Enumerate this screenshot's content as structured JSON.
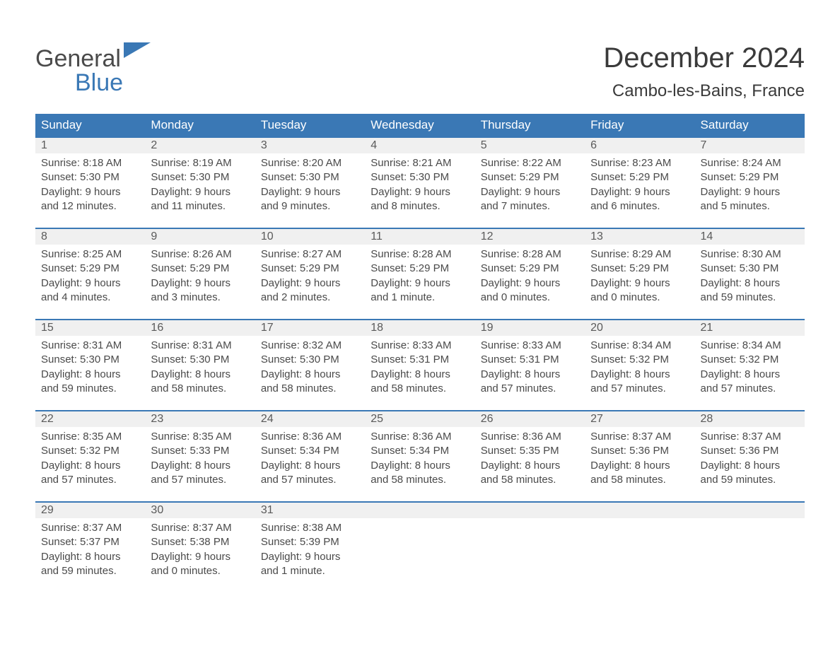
{
  "logo": {
    "part1": "General",
    "part2": "Blue"
  },
  "title": "December 2024",
  "location": "Cambo-les-Bains, France",
  "colors": {
    "header_bg": "#3a78b5",
    "header_text": "#ffffff",
    "daynum_bg": "#f0f0f0",
    "row_border": "#3a78b5",
    "body_text": "#4a4a4a",
    "title_text": "#3a3a3a",
    "logo_accent": "#3a78b5"
  },
  "day_headers": [
    "Sunday",
    "Monday",
    "Tuesday",
    "Wednesday",
    "Thursday",
    "Friday",
    "Saturday"
  ],
  "weeks": [
    [
      {
        "n": "1",
        "sunrise": "Sunrise: 8:18 AM",
        "sunset": "Sunset: 5:30 PM",
        "d1": "Daylight: 9 hours",
        "d2": "and 12 minutes."
      },
      {
        "n": "2",
        "sunrise": "Sunrise: 8:19 AM",
        "sunset": "Sunset: 5:30 PM",
        "d1": "Daylight: 9 hours",
        "d2": "and 11 minutes."
      },
      {
        "n": "3",
        "sunrise": "Sunrise: 8:20 AM",
        "sunset": "Sunset: 5:30 PM",
        "d1": "Daylight: 9 hours",
        "d2": "and 9 minutes."
      },
      {
        "n": "4",
        "sunrise": "Sunrise: 8:21 AM",
        "sunset": "Sunset: 5:30 PM",
        "d1": "Daylight: 9 hours",
        "d2": "and 8 minutes."
      },
      {
        "n": "5",
        "sunrise": "Sunrise: 8:22 AM",
        "sunset": "Sunset: 5:29 PM",
        "d1": "Daylight: 9 hours",
        "d2": "and 7 minutes."
      },
      {
        "n": "6",
        "sunrise": "Sunrise: 8:23 AM",
        "sunset": "Sunset: 5:29 PM",
        "d1": "Daylight: 9 hours",
        "d2": "and 6 minutes."
      },
      {
        "n": "7",
        "sunrise": "Sunrise: 8:24 AM",
        "sunset": "Sunset: 5:29 PM",
        "d1": "Daylight: 9 hours",
        "d2": "and 5 minutes."
      }
    ],
    [
      {
        "n": "8",
        "sunrise": "Sunrise: 8:25 AM",
        "sunset": "Sunset: 5:29 PM",
        "d1": "Daylight: 9 hours",
        "d2": "and 4 minutes."
      },
      {
        "n": "9",
        "sunrise": "Sunrise: 8:26 AM",
        "sunset": "Sunset: 5:29 PM",
        "d1": "Daylight: 9 hours",
        "d2": "and 3 minutes."
      },
      {
        "n": "10",
        "sunrise": "Sunrise: 8:27 AM",
        "sunset": "Sunset: 5:29 PM",
        "d1": "Daylight: 9 hours",
        "d2": "and 2 minutes."
      },
      {
        "n": "11",
        "sunrise": "Sunrise: 8:28 AM",
        "sunset": "Sunset: 5:29 PM",
        "d1": "Daylight: 9 hours",
        "d2": "and 1 minute."
      },
      {
        "n": "12",
        "sunrise": "Sunrise: 8:28 AM",
        "sunset": "Sunset: 5:29 PM",
        "d1": "Daylight: 9 hours",
        "d2": "and 0 minutes."
      },
      {
        "n": "13",
        "sunrise": "Sunrise: 8:29 AM",
        "sunset": "Sunset: 5:29 PM",
        "d1": "Daylight: 9 hours",
        "d2": "and 0 minutes."
      },
      {
        "n": "14",
        "sunrise": "Sunrise: 8:30 AM",
        "sunset": "Sunset: 5:30 PM",
        "d1": "Daylight: 8 hours",
        "d2": "and 59 minutes."
      }
    ],
    [
      {
        "n": "15",
        "sunrise": "Sunrise: 8:31 AM",
        "sunset": "Sunset: 5:30 PM",
        "d1": "Daylight: 8 hours",
        "d2": "and 59 minutes."
      },
      {
        "n": "16",
        "sunrise": "Sunrise: 8:31 AM",
        "sunset": "Sunset: 5:30 PM",
        "d1": "Daylight: 8 hours",
        "d2": "and 58 minutes."
      },
      {
        "n": "17",
        "sunrise": "Sunrise: 8:32 AM",
        "sunset": "Sunset: 5:30 PM",
        "d1": "Daylight: 8 hours",
        "d2": "and 58 minutes."
      },
      {
        "n": "18",
        "sunrise": "Sunrise: 8:33 AM",
        "sunset": "Sunset: 5:31 PM",
        "d1": "Daylight: 8 hours",
        "d2": "and 58 minutes."
      },
      {
        "n": "19",
        "sunrise": "Sunrise: 8:33 AM",
        "sunset": "Sunset: 5:31 PM",
        "d1": "Daylight: 8 hours",
        "d2": "and 57 minutes."
      },
      {
        "n": "20",
        "sunrise": "Sunrise: 8:34 AM",
        "sunset": "Sunset: 5:32 PM",
        "d1": "Daylight: 8 hours",
        "d2": "and 57 minutes."
      },
      {
        "n": "21",
        "sunrise": "Sunrise: 8:34 AM",
        "sunset": "Sunset: 5:32 PM",
        "d1": "Daylight: 8 hours",
        "d2": "and 57 minutes."
      }
    ],
    [
      {
        "n": "22",
        "sunrise": "Sunrise: 8:35 AM",
        "sunset": "Sunset: 5:32 PM",
        "d1": "Daylight: 8 hours",
        "d2": "and 57 minutes."
      },
      {
        "n": "23",
        "sunrise": "Sunrise: 8:35 AM",
        "sunset": "Sunset: 5:33 PM",
        "d1": "Daylight: 8 hours",
        "d2": "and 57 minutes."
      },
      {
        "n": "24",
        "sunrise": "Sunrise: 8:36 AM",
        "sunset": "Sunset: 5:34 PM",
        "d1": "Daylight: 8 hours",
        "d2": "and 57 minutes."
      },
      {
        "n": "25",
        "sunrise": "Sunrise: 8:36 AM",
        "sunset": "Sunset: 5:34 PM",
        "d1": "Daylight: 8 hours",
        "d2": "and 58 minutes."
      },
      {
        "n": "26",
        "sunrise": "Sunrise: 8:36 AM",
        "sunset": "Sunset: 5:35 PM",
        "d1": "Daylight: 8 hours",
        "d2": "and 58 minutes."
      },
      {
        "n": "27",
        "sunrise": "Sunrise: 8:37 AM",
        "sunset": "Sunset: 5:36 PM",
        "d1": "Daylight: 8 hours",
        "d2": "and 58 minutes."
      },
      {
        "n": "28",
        "sunrise": "Sunrise: 8:37 AM",
        "sunset": "Sunset: 5:36 PM",
        "d1": "Daylight: 8 hours",
        "d2": "and 59 minutes."
      }
    ],
    [
      {
        "n": "29",
        "sunrise": "Sunrise: 8:37 AM",
        "sunset": "Sunset: 5:37 PM",
        "d1": "Daylight: 8 hours",
        "d2": "and 59 minutes."
      },
      {
        "n": "30",
        "sunrise": "Sunrise: 8:37 AM",
        "sunset": "Sunset: 5:38 PM",
        "d1": "Daylight: 9 hours",
        "d2": "and 0 minutes."
      },
      {
        "n": "31",
        "sunrise": "Sunrise: 8:38 AM",
        "sunset": "Sunset: 5:39 PM",
        "d1": "Daylight: 9 hours",
        "d2": "and 1 minute."
      },
      null,
      null,
      null,
      null
    ]
  ]
}
